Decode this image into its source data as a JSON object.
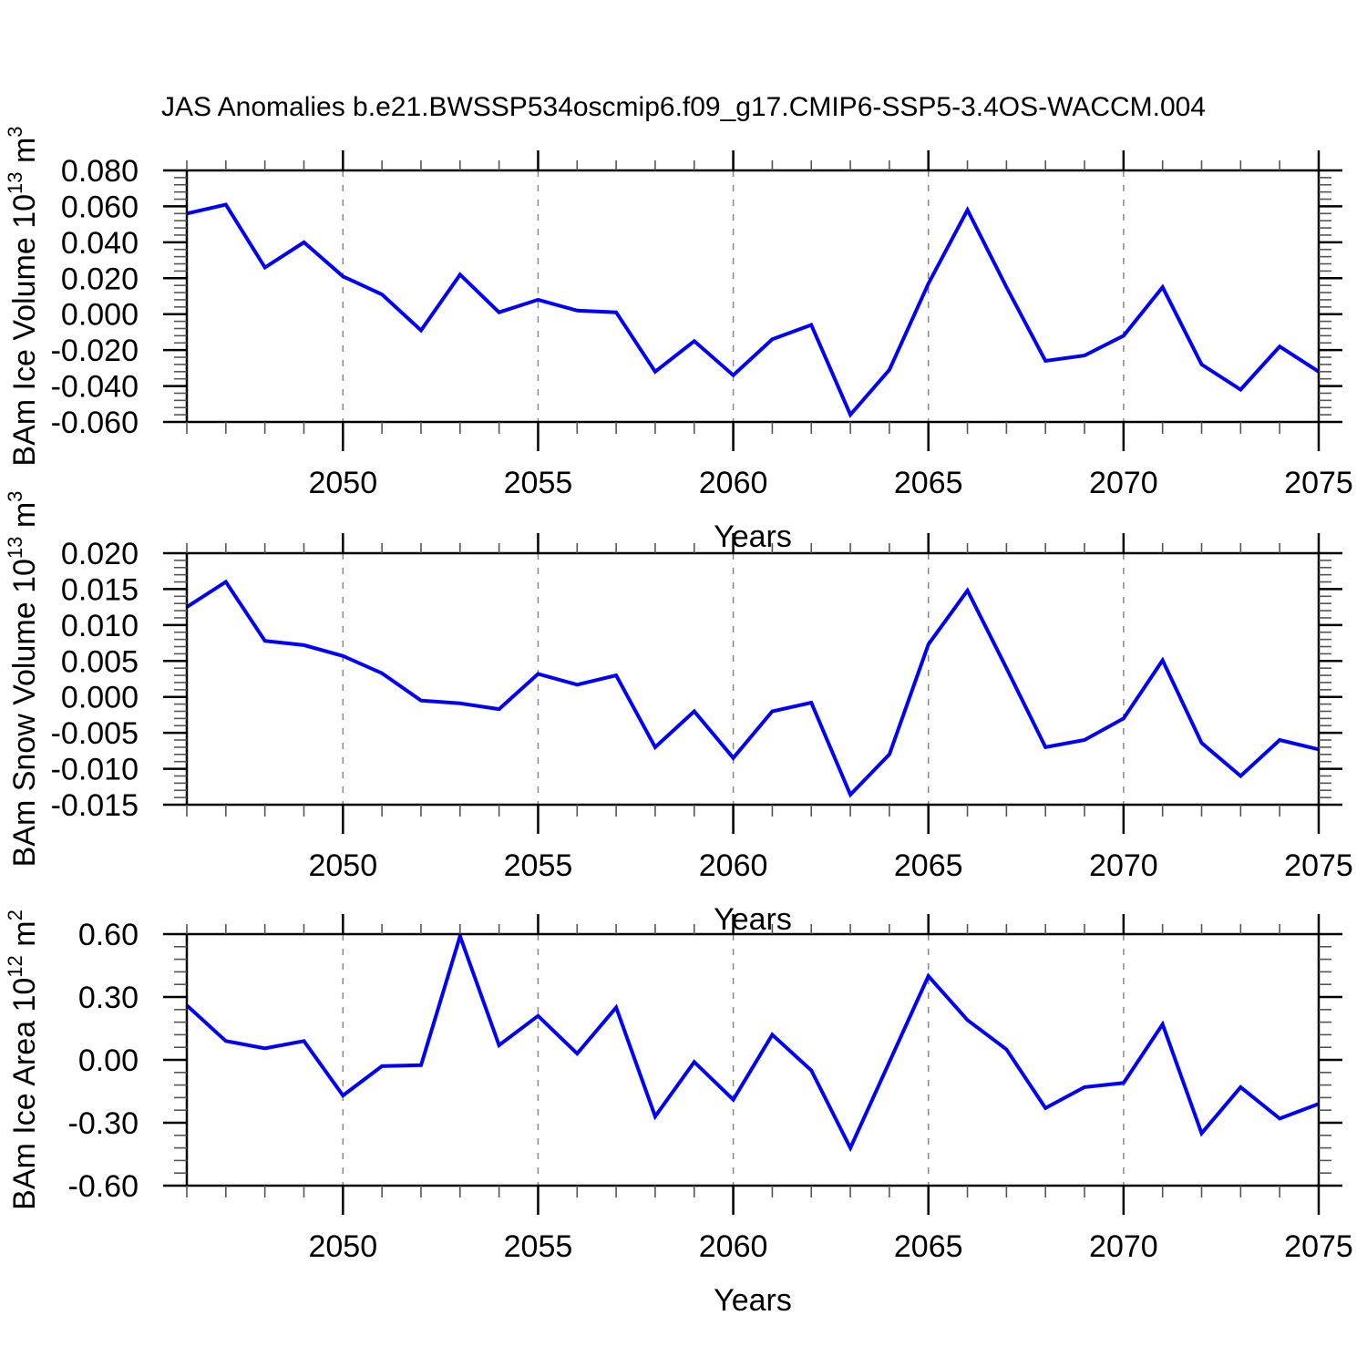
{
  "title": "JAS Anomalies b.e21.BWSSP534oscmip6.f09_g17.CMIP6-SSP5-3.4OS-WACCM.004",
  "colors": {
    "line": "#0000ff",
    "axis": "#000000",
    "gridline": "#888888",
    "minor_tick": "#555555",
    "background": "#ffffff"
  },
  "x_axis": {
    "label": "Years",
    "start_year": 2046,
    "end_year": 2075,
    "major_years": [
      2050,
      2055,
      2060,
      2065,
      2070,
      2075
    ],
    "major_labels": [
      "2050",
      "2055",
      "2060",
      "2065",
      "2070",
      "2075"
    ],
    "minor_step": 1,
    "gridline_years": [
      2050,
      2055,
      2060,
      2065,
      2070
    ]
  },
  "x_years": [
    2046,
    2047,
    2048,
    2049,
    2050,
    2051,
    2052,
    2053,
    2054,
    2055,
    2056,
    2057,
    2058,
    2059,
    2060,
    2061,
    2062,
    2063,
    2064,
    2065,
    2066,
    2067,
    2068,
    2069,
    2070,
    2071,
    2072,
    2073,
    2074,
    2075
  ],
  "chart_data": [
    {
      "type": "line",
      "id": "ice-volume",
      "ylabel": "BAm Ice Volume 10^13 m^3",
      "ylabel_parts": [
        {
          "text": "BAm Ice Volume 10"
        },
        {
          "text": "13",
          "sup": true
        },
        {
          "text": " m"
        },
        {
          "text": "3",
          "sup": true
        }
      ],
      "ylim": [
        -0.06,
        0.08
      ],
      "ytick_major_step": 0.02,
      "ytick_minor_step": 0.004,
      "ytick_labels": [
        "0.080",
        "0.060",
        "0.040",
        "0.020",
        "0.000",
        "-0.020",
        "-0.040",
        "-0.060"
      ],
      "grid": "vertical-dashed",
      "legend": "none",
      "values": [
        0.056,
        0.061,
        0.026,
        0.04,
        0.021,
        0.011,
        -0.009,
        0.022,
        0.001,
        0.008,
        0.002,
        0.001,
        -0.032,
        -0.015,
        -0.034,
        -0.014,
        -0.006,
        -0.056,
        -0.031,
        0.017,
        0.058,
        0.015,
        -0.026,
        -0.023,
        -0.012,
        0.015,
        -0.028,
        -0.042,
        -0.018,
        -0.032
      ]
    },
    {
      "type": "line",
      "id": "snow-volume",
      "ylabel": "BAm Snow Volume 10^13 m^3",
      "ylabel_parts": [
        {
          "text": "BAm Snow Volume 10"
        },
        {
          "text": "13",
          "sup": true
        },
        {
          "text": " m"
        },
        {
          "text": "3",
          "sup": true
        }
      ],
      "ylim": [
        -0.015,
        0.02
      ],
      "ytick_major_step": 0.005,
      "ytick_minor_step": 0.001,
      "ytick_labels": [
        "0.020",
        "0.015",
        "0.010",
        "0.005",
        "0.000",
        "-0.005",
        "-0.010",
        "-0.015"
      ],
      "grid": "vertical-dashed",
      "legend": "none",
      "values": [
        0.0125,
        0.016,
        0.0078,
        0.0072,
        0.0057,
        0.0033,
        -0.0005,
        -0.0009,
        -0.0017,
        0.0032,
        0.0017,
        0.003,
        -0.007,
        -0.002,
        -0.0085,
        -0.002,
        -0.0008,
        -0.0136,
        -0.008,
        0.0073,
        0.0148,
        0.004,
        -0.007,
        -0.006,
        -0.003,
        0.0051,
        -0.0064,
        -0.011,
        -0.006,
        -0.0073
      ]
    },
    {
      "type": "line",
      "id": "ice-area",
      "ylabel": "BAm Ice Area 10^12 m^2",
      "ylabel_parts": [
        {
          "text": "BAm Ice Area 10"
        },
        {
          "text": "12",
          "sup": true
        },
        {
          "text": " m"
        },
        {
          "text": "2",
          "sup": true
        }
      ],
      "ylim": [
        -0.6,
        0.6
      ],
      "ytick_major_step": 0.3,
      "ytick_minor_step": 0.06,
      "ytick_labels": [
        "0.60",
        "0.30",
        "0.00",
        "-0.30",
        "-0.60"
      ],
      "grid": "vertical-dashed",
      "legend": "none",
      "values": [
        0.26,
        0.09,
        0.055,
        0.09,
        -0.17,
        -0.03,
        -0.025,
        0.59,
        0.07,
        0.21,
        0.03,
        0.25,
        -0.27,
        -0.01,
        -0.19,
        0.12,
        -0.05,
        -0.42,
        -0.01,
        0.4,
        0.19,
        0.05,
        -0.23,
        -0.13,
        -0.11,
        0.17,
        -0.35,
        -0.13,
        -0.28,
        -0.21
      ]
    }
  ]
}
